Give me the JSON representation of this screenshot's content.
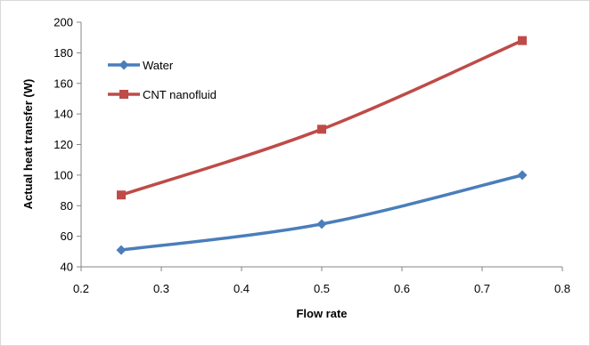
{
  "chart_data": {
    "type": "line",
    "title": "",
    "xlabel": "Flow rate",
    "ylabel": "Actual heat transfer (W)",
    "xlim": [
      0.2,
      0.8
    ],
    "ylim": [
      40,
      200
    ],
    "xticks": [
      0.2,
      0.3,
      0.4,
      0.5,
      0.6,
      0.7,
      0.8
    ],
    "xtick_labels": [
      "0.2",
      "0.3",
      "0.4",
      "0.5",
      "0.6",
      "0.7",
      "0.8"
    ],
    "yticks": [
      40,
      60,
      80,
      100,
      120,
      140,
      160,
      180,
      200
    ],
    "ytick_labels": [
      "40",
      "60",
      "80",
      "100",
      "120",
      "140",
      "160",
      "180",
      "200"
    ],
    "grid": false,
    "smooth": true,
    "legend_position": "top-left",
    "series": [
      {
        "name": "Water",
        "color": "#4a7ebb",
        "marker": "diamond",
        "x": [
          0.25,
          0.5,
          0.75
        ],
        "y": [
          51,
          68,
          100
        ]
      },
      {
        "name": "CNT nanofluid",
        "color": "#be4b48",
        "marker": "square",
        "x": [
          0.25,
          0.5,
          0.75
        ],
        "y": [
          87,
          130,
          188
        ]
      }
    ]
  }
}
